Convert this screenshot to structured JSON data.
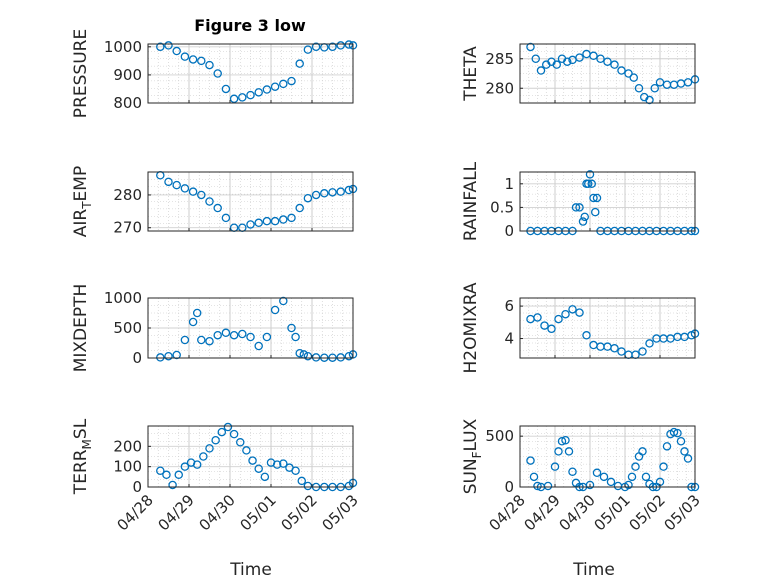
{
  "figure": {
    "title": "Figure 3 low",
    "x_axis_label": "Time"
  },
  "colors": {
    "marker": "#0072BD",
    "axis": "#262626",
    "grid": "#b3b3b3"
  },
  "x_tick_labels": [
    "04/28",
    "04/29",
    "04/30",
    "05/01",
    "05/02",
    "05/03"
  ],
  "chart_data": [
    {
      "type": "scatter",
      "ylabel": "PRESSURE",
      "title": "Figure 3 low",
      "xlim": [
        "04/28",
        "05/03"
      ],
      "ylim": [
        800,
        1010
      ],
      "yticks": [
        800,
        900,
        1000
      ],
      "ytick_labels": [
        "800",
        "900",
        "1000"
      ],
      "grid": true,
      "x": [
        0.3,
        0.5,
        0.7,
        0.9,
        1.1,
        1.3,
        1.5,
        1.7,
        1.9,
        2.1,
        2.3,
        2.5,
        2.7,
        2.9,
        3.1,
        3.3,
        3.5,
        3.7,
        3.9,
        4.1,
        4.3,
        4.5,
        4.7,
        4.9,
        5.0
      ],
      "y": [
        1000,
        1005,
        985,
        965,
        955,
        950,
        935,
        905,
        850,
        815,
        820,
        828,
        838,
        848,
        858,
        868,
        878,
        940,
        990,
        1000,
        998,
        1000,
        1005,
        1008,
        1005
      ]
    },
    {
      "type": "scatter",
      "ylabel": "THETA",
      "xlim": [
        "04/28",
        "05/03"
      ],
      "ylim": [
        277.5,
        287.5
      ],
      "yticks": [
        280,
        285
      ],
      "ytick_labels": [
        "280",
        "285"
      ],
      "grid": true,
      "x": [
        0.3,
        0.45,
        0.6,
        0.75,
        0.9,
        1.05,
        1.2,
        1.35,
        1.5,
        1.7,
        1.9,
        2.1,
        2.3,
        2.5,
        2.7,
        2.9,
        3.1,
        3.25,
        3.4,
        3.55,
        3.7,
        3.85,
        4.0,
        4.2,
        4.4,
        4.6,
        4.8,
        5.0
      ],
      "y": [
        287,
        285,
        283,
        284,
        284.5,
        284,
        285,
        284.5,
        284.8,
        285.2,
        285.8,
        285.5,
        285,
        284.5,
        284,
        283,
        282.5,
        281.8,
        280,
        278.5,
        278,
        280,
        281,
        280.6,
        280.6,
        280.8,
        281,
        281.5
      ]
    },
    {
      "type": "scatter",
      "ylabel": "AIR_TEMP",
      "xlim": [
        "04/28",
        "05/03"
      ],
      "ylim": [
        269,
        287
      ],
      "yticks": [
        270,
        280
      ],
      "ytick_labels": [
        "270",
        "280"
      ],
      "grid": true,
      "x": [
        0.3,
        0.5,
        0.7,
        0.9,
        1.1,
        1.3,
        1.5,
        1.7,
        1.9,
        2.1,
        2.3,
        2.5,
        2.7,
        2.9,
        3.1,
        3.3,
        3.5,
        3.7,
        3.9,
        4.1,
        4.3,
        4.5,
        4.7,
        4.9,
        5.0
      ],
      "y": [
        286,
        284,
        283,
        282,
        281,
        280,
        278,
        276,
        273,
        270,
        270,
        271,
        271.5,
        272,
        272,
        272.5,
        273,
        276,
        279,
        280,
        280.5,
        280.8,
        281,
        281.5,
        281.8
      ]
    },
    {
      "type": "scatter",
      "ylabel": "RAINFALL",
      "xlim": [
        "04/28",
        "05/03"
      ],
      "ylim": [
        0,
        1.25
      ],
      "yticks": [
        0,
        0.5,
        1
      ],
      "ytick_labels": [
        "0",
        "0.5",
        "1"
      ],
      "grid": true,
      "x": [
        0.3,
        0.5,
        0.7,
        0.9,
        1.1,
        1.3,
        1.5,
        1.6,
        1.7,
        1.8,
        1.85,
        1.9,
        1.95,
        2.0,
        2.05,
        2.1,
        2.15,
        2.2,
        2.3,
        2.5,
        2.7,
        2.9,
        3.1,
        3.3,
        3.5,
        3.7,
        3.9,
        4.1,
        4.3,
        4.5,
        4.7,
        4.9,
        5.0
      ],
      "y": [
        0,
        0,
        0,
        0,
        0,
        0,
        0,
        0.5,
        0.5,
        0.2,
        0.3,
        1.0,
        1.0,
        1.2,
        1.0,
        0.7,
        0.4,
        0.7,
        0,
        0,
        0,
        0,
        0,
        0,
        0,
        0,
        0,
        0,
        0,
        0,
        0,
        0,
        0
      ]
    },
    {
      "type": "scatter",
      "ylabel": "MIXDEPTH",
      "xlim": [
        "04/28",
        "05/03"
      ],
      "ylim": [
        0,
        1000
      ],
      "yticks": [
        0,
        500,
        1000
      ],
      "ytick_labels": [
        "0",
        "500",
        "1000"
      ],
      "grid": true,
      "x": [
        0.3,
        0.5,
        0.7,
        0.9,
        1.1,
        1.2,
        1.3,
        1.5,
        1.7,
        1.9,
        2.1,
        2.3,
        2.5,
        2.7,
        2.9,
        3.1,
        3.3,
        3.5,
        3.6,
        3.7,
        3.8,
        3.9,
        4.1,
        4.3,
        4.5,
        4.7,
        4.9,
        5.0
      ],
      "y": [
        10,
        30,
        50,
        300,
        600,
        750,
        300,
        280,
        380,
        420,
        380,
        400,
        350,
        200,
        350,
        800,
        950,
        500,
        350,
        80,
        60,
        30,
        10,
        5,
        5,
        10,
        30,
        60
      ]
    },
    {
      "type": "scatter",
      "ylabel": "H2OMIXRA",
      "xlim": [
        "04/28",
        "05/03"
      ],
      "ylim": [
        2.8,
        6.5
      ],
      "yticks": [
        4,
        6
      ],
      "ytick_labels": [
        "4",
        "6"
      ],
      "grid": true,
      "x": [
        0.3,
        0.5,
        0.7,
        0.9,
        1.1,
        1.3,
        1.5,
        1.7,
        1.9,
        2.1,
        2.3,
        2.5,
        2.7,
        2.9,
        3.1,
        3.3,
        3.5,
        3.7,
        3.9,
        4.1,
        4.3,
        4.5,
        4.7,
        4.9,
        5.0
      ],
      "y": [
        5.2,
        5.3,
        4.8,
        4.6,
        5.2,
        5.5,
        5.8,
        5.6,
        4.2,
        3.6,
        3.5,
        3.5,
        3.4,
        3.2,
        3.0,
        3.0,
        3.2,
        3.7,
        4.0,
        4.0,
        4.0,
        4.1,
        4.1,
        4.2,
        4.3
      ]
    },
    {
      "type": "scatter",
      "ylabel": "TERR_MSL",
      "xlim": [
        "04/28",
        "05/03"
      ],
      "ylim": [
        0,
        300
      ],
      "yticks": [
        0,
        100,
        200
      ],
      "ytick_labels": [
        "0",
        "100",
        "200"
      ],
      "grid": true,
      "x": [
        0.3,
        0.45,
        0.6,
        0.75,
        0.9,
        1.05,
        1.2,
        1.35,
        1.5,
        1.65,
        1.8,
        1.95,
        2.1,
        2.25,
        2.4,
        2.55,
        2.7,
        2.85,
        3.0,
        3.15,
        3.3,
        3.45,
        3.6,
        3.75,
        3.9,
        4.1,
        4.3,
        4.5,
        4.7,
        4.9,
        5.0
      ],
      "y": [
        80,
        60,
        10,
        60,
        100,
        120,
        110,
        150,
        190,
        230,
        270,
        295,
        260,
        220,
        180,
        130,
        90,
        50,
        120,
        110,
        115,
        95,
        80,
        30,
        5,
        0,
        0,
        0,
        0,
        5,
        20
      ]
    },
    {
      "type": "scatter",
      "ylabel": "SUN_FLUX",
      "xlim": [
        "04/28",
        "05/03"
      ],
      "ylim": [
        0,
        600
      ],
      "yticks": [
        0,
        500
      ],
      "ytick_labels": [
        "0",
        "500"
      ],
      "grid": true,
      "x": [
        0.3,
        0.4,
        0.5,
        0.6,
        0.8,
        1.0,
        1.1,
        1.2,
        1.3,
        1.4,
        1.5,
        1.6,
        1.7,
        1.8,
        2.0,
        2.2,
        2.4,
        2.6,
        2.8,
        3.0,
        3.1,
        3.2,
        3.3,
        3.4,
        3.5,
        3.6,
        3.7,
        3.8,
        3.9,
        4.0,
        4.1,
        4.2,
        4.3,
        4.4,
        4.5,
        4.6,
        4.7,
        4.8,
        4.9,
        5.0
      ],
      "y": [
        260,
        100,
        10,
        0,
        10,
        200,
        350,
        450,
        460,
        350,
        150,
        40,
        0,
        0,
        20,
        140,
        100,
        50,
        10,
        0,
        20,
        100,
        200,
        300,
        350,
        100,
        30,
        0,
        0,
        50,
        200,
        400,
        520,
        540,
        530,
        450,
        350,
        280,
        0,
        0
      ]
    }
  ]
}
